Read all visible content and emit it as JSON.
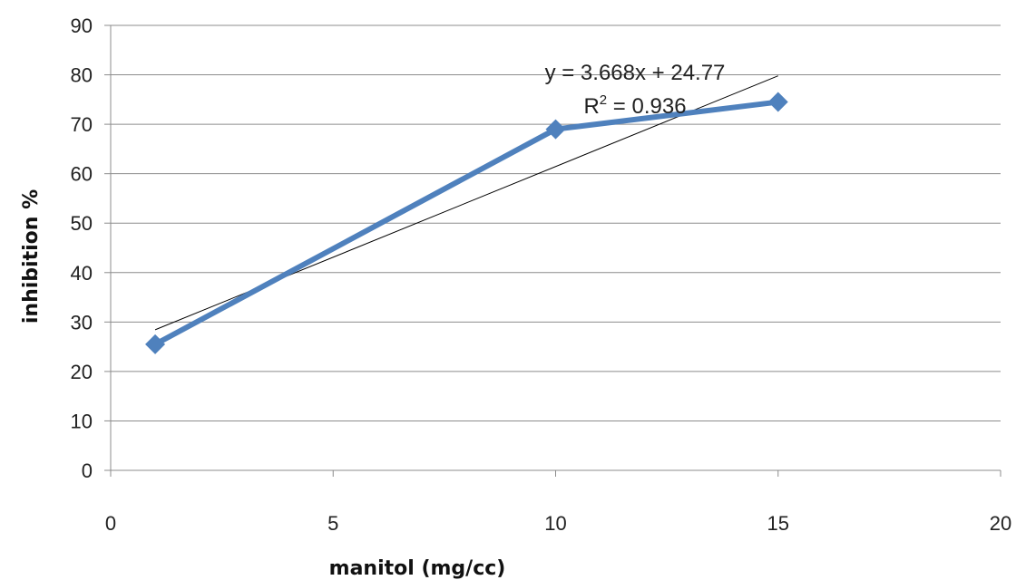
{
  "chart_data": {
    "type": "scatter",
    "title": "",
    "xlabel": "manitol (mg/cc)",
    "ylabel": "inhibition %",
    "xlim": [
      0,
      20
    ],
    "ylim": [
      0,
      90
    ],
    "xticks": [
      "0",
      "5",
      "10",
      "15",
      "20"
    ],
    "yticks": [
      "0",
      "10",
      "20",
      "30",
      "40",
      "50",
      "60",
      "70",
      "80",
      "90"
    ],
    "grid": "horizontal",
    "legend": "none",
    "series": [
      {
        "x": [
          1,
          10,
          15
        ],
        "y": [
          25.5,
          69,
          74.5
        ],
        "color": "#4f81bd",
        "marker": "diamond",
        "line": "solid"
      }
    ],
    "trendline": {
      "type": "linear",
      "slope": 3.668,
      "intercept": 24.77,
      "x_range": [
        1,
        15
      ],
      "color": "#000000",
      "equation": "y = 3.668x + 24.77",
      "r2_prefix": "R",
      "r2_sup": "2",
      "r2_value": " = 0.936"
    }
  }
}
